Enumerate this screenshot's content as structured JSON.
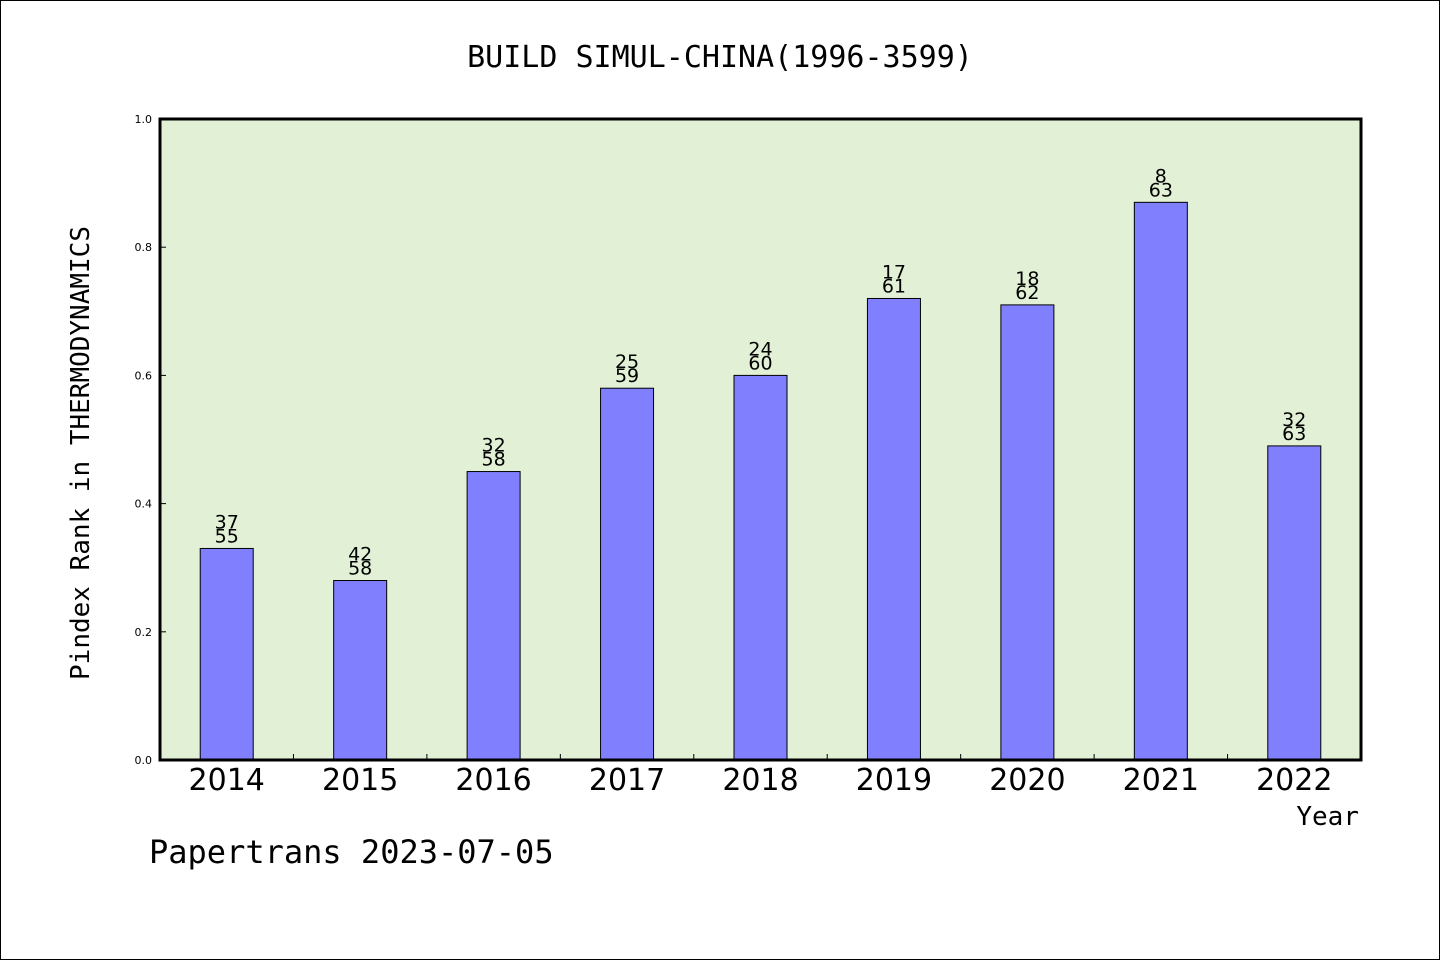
{
  "chart_data": {
    "type": "bar",
    "title": "BUILD SIMUL-CHINA(1996-3599)",
    "xlabel": "Year",
    "ylabel": "Pindex Rank in THERMODYNAMICS",
    "footer": "Papertrans 2023-07-05",
    "categories": [
      "2014",
      "2015",
      "2016",
      "2017",
      "2018",
      "2019",
      "2020",
      "2021",
      "2022"
    ],
    "values": [
      0.33,
      0.28,
      0.45,
      0.58,
      0.6,
      0.72,
      0.71,
      0.87,
      0.49
    ],
    "labels_top": [
      "37",
      "42",
      "32",
      "25",
      "24",
      "17",
      "18",
      "8",
      "32"
    ],
    "labels_bottom": [
      "55",
      "58",
      "58",
      "59",
      "60",
      "61",
      "62",
      "63",
      "63"
    ],
    "ylim": [
      0,
      1.0
    ],
    "yticks": [
      "0.0",
      "0.2",
      "0.4",
      "0.6",
      "0.8",
      "1.0"
    ],
    "colors": {
      "bar": "#8080ff",
      "plot_bg": "#e2f0d6",
      "axis": "#000000"
    },
    "grid": false,
    "legend": "none"
  }
}
